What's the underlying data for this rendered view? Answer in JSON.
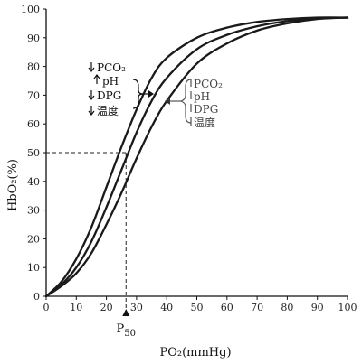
{
  "chart_data": {
    "type": "line",
    "xlabel": "PO₂(mmHg)",
    "ylabel": "HbO₂(%)",
    "xlim": [
      0,
      100
    ],
    "ylim": [
      0,
      100
    ],
    "xticks": [
      0,
      10,
      20,
      30,
      40,
      50,
      60,
      70,
      80,
      90,
      100
    ],
    "yticks": [
      0,
      10,
      20,
      30,
      40,
      50,
      60,
      70,
      80,
      90,
      100
    ],
    "grid": false,
    "series": [
      {
        "x": [
          0,
          5,
          10,
          15,
          20,
          25,
          30,
          35,
          40,
          50,
          60,
          70,
          80,
          90,
          100
        ],
        "values": [
          0,
          5,
          13,
          24,
          38,
          52,
          65,
          76,
          83,
          90,
          93.5,
          95.5,
          96.5,
          97,
          97
        ]
      },
      {
        "x": [
          0,
          5,
          10,
          15,
          20,
          25,
          30,
          35,
          40,
          50,
          60,
          70,
          80,
          90,
          100
        ],
        "values": [
          0,
          4,
          10,
          19,
          31,
          44,
          57,
          68,
          76,
          86,
          91,
          94,
          95.8,
          96.8,
          97
        ]
      },
      {
        "x": [
          0,
          5,
          10,
          15,
          20,
          25,
          30,
          35,
          40,
          50,
          60,
          70,
          80,
          90,
          100
        ],
        "values": [
          0,
          3.5,
          8,
          15,
          25,
          36,
          48,
          59,
          68,
          81,
          88,
          92.5,
          95,
          96.5,
          97
        ]
      }
    ],
    "reference": {
      "p50_x": 26.5,
      "p50_y": 50,
      "label_main": "P",
      "label_sub": "50"
    },
    "annotations": {
      "left": [
        "PCO₂",
        "pH",
        "DPG",
        "温度"
      ],
      "right": [
        "PCO₂",
        "pH",
        "DPG",
        "温度"
      ]
    }
  }
}
